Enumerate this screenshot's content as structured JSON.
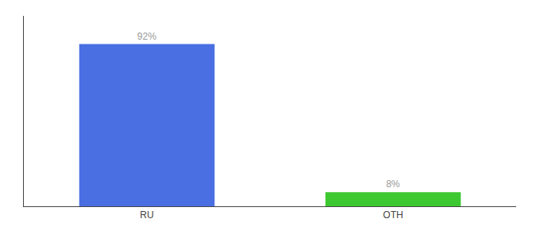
{
  "chart_data": {
    "type": "bar",
    "categories": [
      "RU",
      "OTH"
    ],
    "values": [
      92,
      8
    ],
    "colors": [
      "#4A6FE3",
      "#3DC831"
    ],
    "value_labels": [
      "92%",
      "8%"
    ],
    "data_labels": true,
    "ylim": [
      0,
      108
    ],
    "tick_labels": "x",
    "grid": false
  }
}
